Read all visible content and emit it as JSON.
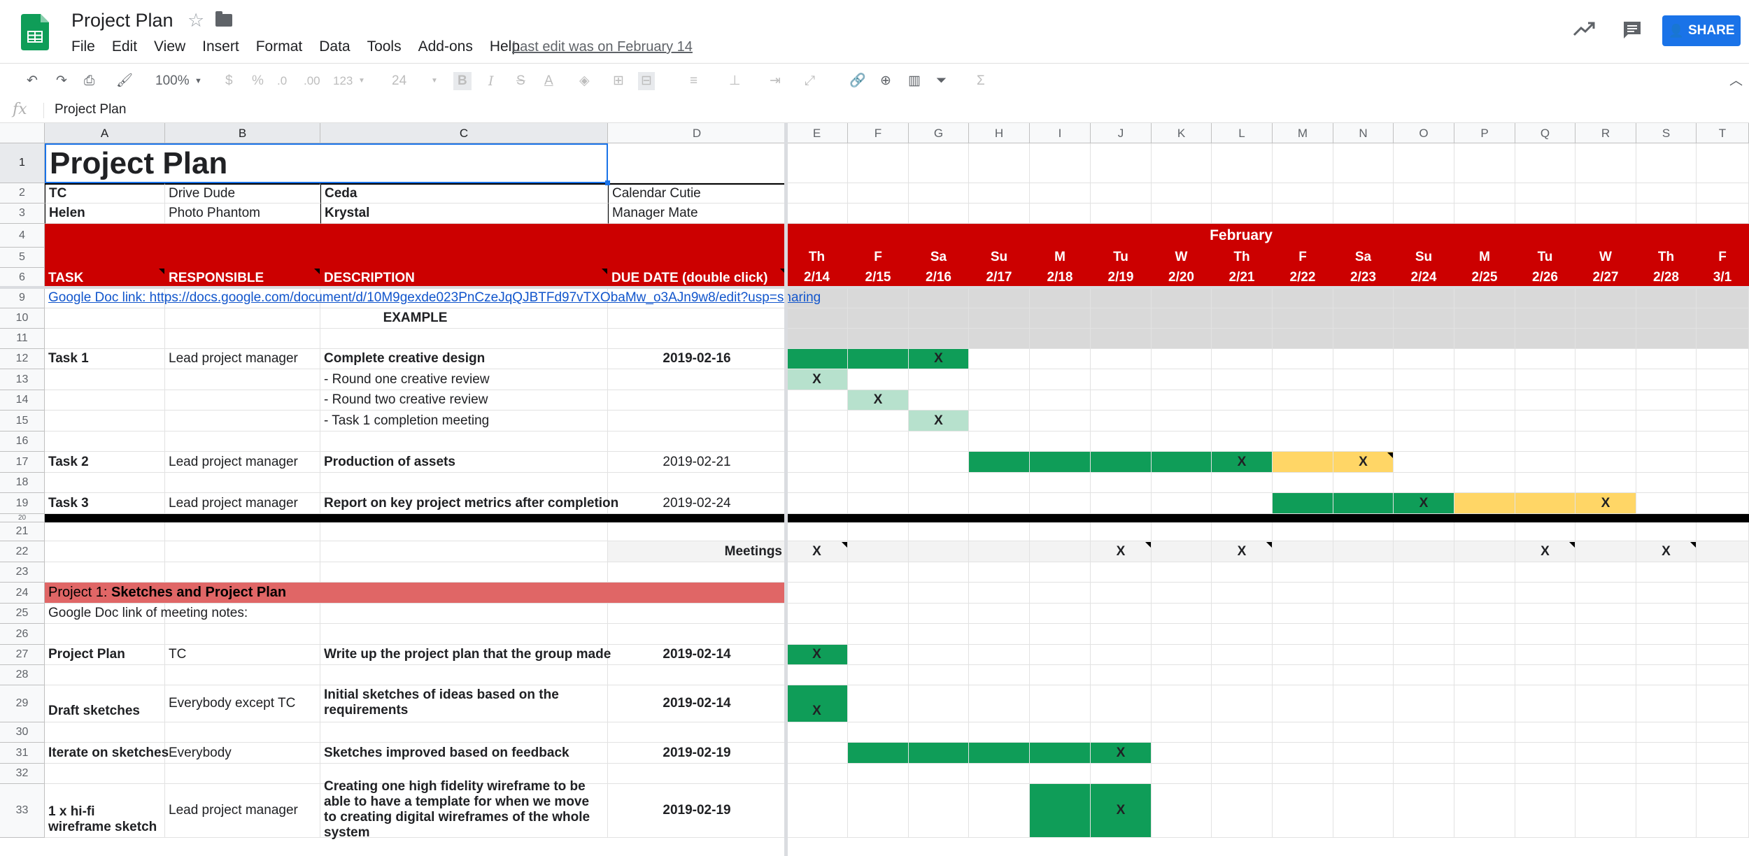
{
  "app": {
    "title": "Project Plan",
    "menu": [
      "File",
      "Edit",
      "View",
      "Insert",
      "Format",
      "Data",
      "Tools",
      "Add-ons",
      "Help"
    ],
    "last_edit": "Last edit was on February 14",
    "share_label": "SHARE"
  },
  "toolbar": {
    "zoom": "100%",
    "currency": "$",
    "percent": "%",
    "dec_decrease": ".0",
    "dec_increase": ".00",
    "number_format": "123",
    "font_size": "24",
    "bold": "B",
    "italic": "I",
    "strike": "S",
    "text_color": "A"
  },
  "formula_bar": {
    "fx": "fx",
    "content": "Project Plan"
  },
  "columns": [
    "A",
    "B",
    "C",
    "D",
    "E",
    "F",
    "G",
    "H",
    "I",
    "J",
    "K",
    "L",
    "M",
    "N",
    "O",
    "P",
    "Q",
    "R",
    "S",
    "T"
  ],
  "rows": [
    "1",
    "2",
    "3",
    "4",
    "5",
    "6",
    "9",
    "10",
    "11",
    "12",
    "13",
    "14",
    "15",
    "16",
    "17",
    "18",
    "19",
    "20",
    "21",
    "22",
    "23",
    "24",
    "25",
    "26",
    "27",
    "28",
    "29",
    "30",
    "31",
    "32",
    "33"
  ],
  "sheet": {
    "title": "Project Plan",
    "team": [
      [
        "TC",
        "Drive Dude",
        "Ceda",
        "Calendar Cutie"
      ],
      [
        "Helen",
        "Photo Phantom",
        "Krystal",
        "Manager Mate"
      ]
    ],
    "headers": [
      "TASK",
      "RESPONSIBLE",
      "DESCRIPTION",
      "DUE DATE (double click)"
    ],
    "month": "February",
    "days": [
      "Th",
      "F",
      "Sa",
      "Su",
      "M",
      "Tu",
      "W",
      "Th",
      "F",
      "Sa",
      "Su",
      "M",
      "Tu",
      "W",
      "Th",
      "F"
    ],
    "dates": [
      "2/14",
      "2/15",
      "2/16",
      "2/17",
      "2/18",
      "2/19",
      "2/20",
      "2/21",
      "2/22",
      "2/23",
      "2/24",
      "2/25",
      "2/26",
      "2/27",
      "2/28",
      "3/1"
    ],
    "doc_link": "Google Doc link: https://docs.google.com/document/d/10M9gexde023PnCzeJqQJBTFd97vTXObaMw_o3AJn9w8/edit?usp=sharing",
    "example": "EXAMPLE",
    "task1": {
      "task": "Task 1",
      "resp": "Lead project manager",
      "desc": "Complete creative design",
      "due": "2019-02-16"
    },
    "sub1": "- Round one creative review",
    "sub2": "- Round two creative review",
    "sub3": "- Task 1 completion meeting",
    "task2": {
      "task": "Task 2",
      "resp": "Lead project manager",
      "desc": "Production of assets",
      "due": "2019-02-21"
    },
    "task3": {
      "task": "Task 3",
      "resp": "Lead project manager",
      "desc": "Report on key project metrics after completion",
      "due": "2019-02-24"
    },
    "meetings": "Meetings",
    "project1_prefix": "Project 1: ",
    "project1_name": "Sketches and Project Plan",
    "meeting_notes": "Google Doc link of meeting notes:",
    "r27": {
      "task": "Project Plan",
      "resp": "TC",
      "desc": "Write up the project plan that the group made",
      "due": "2019-02-14"
    },
    "r29": {
      "task": "Draft sketches",
      "resp": "Everybody except TC",
      "desc": "Initial sketches of ideas based on the requirements",
      "due": "2019-02-14"
    },
    "r31": {
      "task": "Iterate on sketches",
      "resp": "Everybody",
      "desc": "Sketches improved based on feedback",
      "due": "2019-02-19"
    },
    "r33": {
      "task": "1 x hi-fi wireframe sketch",
      "resp": "Lead project manager",
      "desc": "Creating one high fidelity wireframe to be able to have a template for when we move to creating digital wireframes of the whole system",
      "due": "2019-02-19"
    },
    "mark": "X"
  },
  "colors": {
    "header_red": "#cc0000",
    "bar_green": "#0f9d58",
    "light_green": "#b7e1cd",
    "yellow": "#ffd666",
    "project_red": "#e06666",
    "share_blue": "#1a73e8"
  }
}
